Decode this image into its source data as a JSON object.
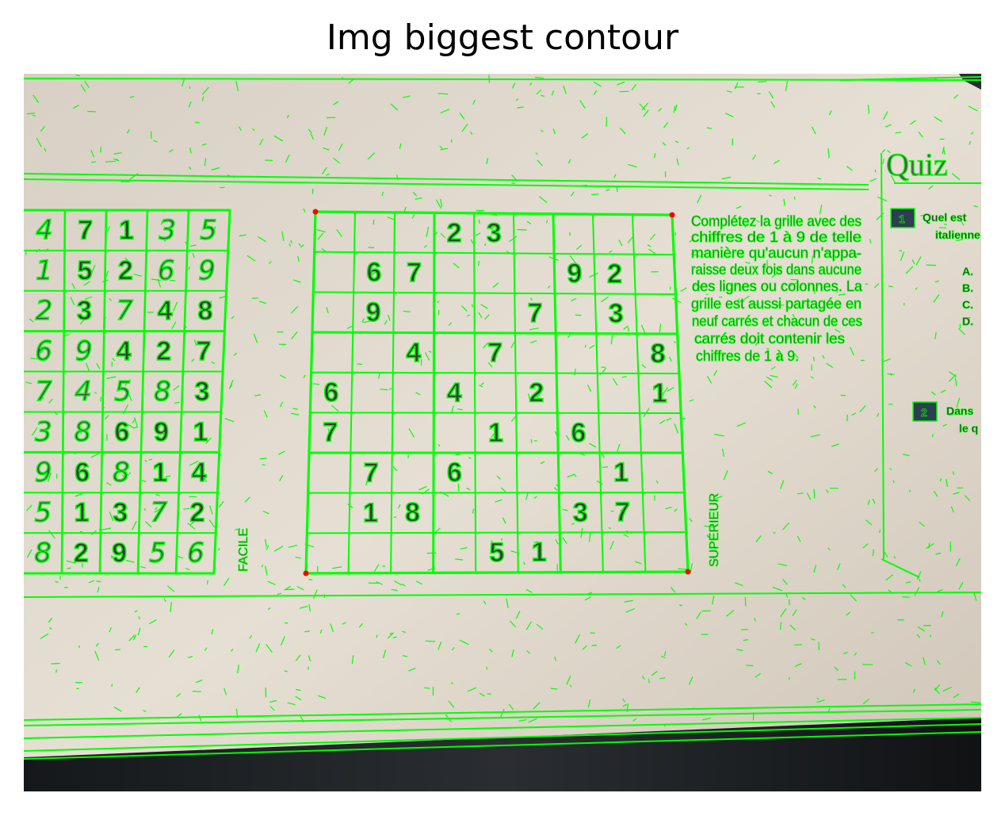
{
  "figure": {
    "title": "Img biggest contour"
  },
  "colors": {
    "contour": "#00ff00",
    "corner": "#ff0000",
    "paper": "#e4ddd0",
    "shadow": "#1c1f22"
  },
  "sudoku_main": {
    "rows": [
      [
        "",
        "",
        "",
        "2",
        "3",
        "",
        "",
        "",
        ""
      ],
      [
        "",
        "6",
        "7",
        "",
        "",
        "",
        "9",
        "2",
        ""
      ],
      [
        "",
        "9",
        "",
        "",
        "",
        "7",
        "",
        "3",
        ""
      ],
      [
        "",
        "",
        "4",
        "",
        "7",
        "",
        "",
        "",
        "8"
      ],
      [
        "6",
        "",
        "",
        "4",
        "",
        "2",
        "",
        "",
        "1"
      ],
      [
        "7",
        "",
        "",
        "",
        "1",
        "",
        "6",
        "",
        ""
      ],
      [
        "",
        "7",
        "",
        "6",
        "",
        "",
        "",
        "1",
        ""
      ],
      [
        "",
        "1",
        "8",
        "",
        "",
        "",
        "3",
        "7",
        ""
      ],
      [
        "",
        "",
        "",
        "",
        "5",
        "1",
        "",
        "",
        ""
      ]
    ],
    "label_facile": "FACILE",
    "label_superieur": "SUPÉRIEUR"
  },
  "sudoku_left": {
    "rows": [
      [
        "4",
        "7",
        "1",
        "3",
        "5"
      ],
      [
        "1",
        "5",
        "2",
        "6",
        "9"
      ],
      [
        "2",
        "3",
        "7",
        "4",
        "8"
      ],
      [
        "6",
        "9",
        "4",
        "2",
        "7"
      ],
      [
        "7",
        "4",
        "5",
        "8",
        "3"
      ],
      [
        "3",
        "8",
        "6",
        "9",
        "1"
      ],
      [
        "9",
        "6",
        "8",
        "1",
        "4"
      ],
      [
        "5",
        "1",
        "3",
        "7",
        "2"
      ],
      [
        "8",
        "2",
        "9",
        "5",
        "6"
      ]
    ],
    "handwritten": [
      [
        1,
        0,
        0,
        1,
        1
      ],
      [
        1,
        0,
        0,
        1,
        1
      ],
      [
        1,
        0,
        1,
        0,
        0
      ],
      [
        1,
        1,
        0,
        0,
        0
      ],
      [
        1,
        1,
        1,
        1,
        0
      ],
      [
        1,
        1,
        0,
        0,
        0
      ],
      [
        1,
        0,
        1,
        0,
        0
      ],
      [
        1,
        0,
        0,
        1,
        0
      ],
      [
        1,
        0,
        0,
        1,
        1
      ]
    ]
  },
  "instructions": [
    "Complétez la grille avec des",
    "chiffres de 1 à 9 de telle",
    "manière qu'aucun n'appa-",
    "raisse deux fois dans aucune",
    "des lignes ou colonnes. La",
    "grille est aussi partagée en",
    "neuf carrés et chacun de ces",
    "carrés doit contenir les",
    "chiffres de 1 à 9."
  ],
  "quiz": {
    "heading": "Quiz",
    "q1_number": "1",
    "q1_line1": "Quel est",
    "q1_line2": "italienne",
    "options": [
      "A.",
      "B.",
      "C.",
      "D."
    ],
    "q2_number": "2",
    "q2_line1": "Dans",
    "q2_line2": "le q"
  }
}
